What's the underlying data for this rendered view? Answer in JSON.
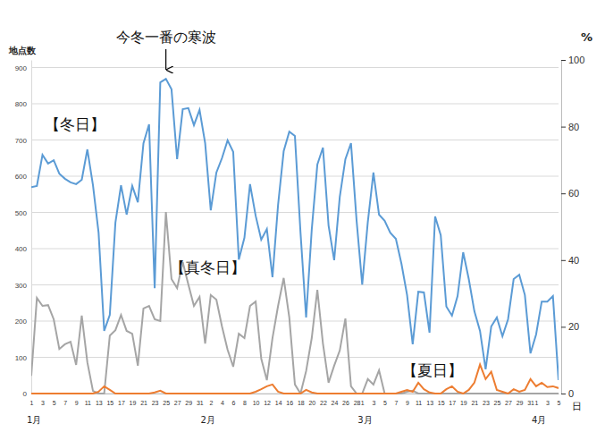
{
  "chart_data": {
    "type": "line",
    "y_label": "地点数",
    "y2_label": "%",
    "x_label": "日",
    "grid": true,
    "ylim": [
      0,
      921
    ],
    "yticks": [
      0,
      100,
      200,
      300,
      400,
      500,
      600,
      700,
      800,
      900
    ],
    "y2lim": [
      0,
      100
    ],
    "y2ticks": [
      0,
      20,
      40,
      60,
      80,
      100
    ],
    "categories": [
      "1",
      null,
      "3",
      null,
      "5",
      null,
      "7",
      null,
      "9",
      null,
      "11",
      null,
      "13",
      null,
      "15",
      null,
      "17",
      null,
      "19",
      null,
      "21",
      null,
      "23",
      null,
      "25",
      null,
      "27",
      null,
      "29",
      null,
      "31",
      null,
      "2",
      null,
      "4",
      null,
      "6",
      null,
      "8",
      null,
      "10",
      null,
      "12",
      null,
      "14",
      null,
      "16",
      null,
      "18",
      null,
      "20",
      null,
      "22",
      null,
      "24",
      null,
      "26",
      null,
      "28",
      "1",
      null,
      "3",
      null,
      "5",
      null,
      "7",
      null,
      "9",
      null,
      "11",
      null,
      "13",
      null,
      "15",
      null,
      "17",
      null,
      "19",
      null,
      "21",
      null,
      "23",
      null,
      "25",
      null,
      "27",
      null,
      "29",
      null,
      "31",
      "1",
      null,
      "3",
      null,
      "5"
    ],
    "x_group_labels": [
      {
        "label": "1月",
        "index": 0
      },
      {
        "label": "2月",
        "index": 31
      },
      {
        "label": "3月",
        "index": 59
      },
      {
        "label": "4月",
        "index": 90
      }
    ],
    "annotations": [
      {
        "text": "今冬一番の寒波",
        "index": 24
      }
    ],
    "series": [
      {
        "name": "【冬日】",
        "color": "#5b9bd5",
        "values": [
          570,
          573,
          659,
          635,
          644,
          607,
          593,
          583,
          578,
          590,
          674,
          575,
          444,
          173,
          217,
          472,
          575,
          494,
          573,
          528,
          691,
          743,
          291,
          859,
          869,
          840,
          647,
          785,
          788,
          741,
          783,
          691,
          506,
          610,
          650,
          699,
          667,
          370,
          430,
          578,
          491,
          425,
          454,
          321,
          521,
          669,
          723,
          711,
          444,
          210,
          452,
          632,
          679,
          464,
          368,
          543,
          647,
          691,
          477,
          301,
          474,
          610,
          494,
          477,
          444,
          427,
          358,
          272,
          136,
          281,
          279,
          168,
          489,
          437,
          240,
          215,
          269,
          390,
          316,
          227,
          173,
          67,
          185,
          210,
          158,
          205,
          316,
          328,
          272,
          111,
          163,
          254,
          254,
          269,
          37
        ]
      },
      {
        "name": "【真冬日】",
        "color": "#a5a5a5",
        "values": [
          49,
          264,
          242,
          244,
          205,
          123,
          136,
          143,
          79,
          215,
          86,
          7,
          0,
          0,
          160,
          175,
          217,
          173,
          165,
          77,
          235,
          242,
          205,
          200,
          501,
          316,
          291,
          363,
          301,
          242,
          267,
          138,
          272,
          259,
          185,
          121,
          74,
          165,
          153,
          242,
          254,
          96,
          37,
          153,
          242,
          319,
          210,
          25,
          0,
          62,
          153,
          286,
          138,
          30,
          77,
          119,
          207,
          20,
          0,
          0,
          40,
          25,
          64,
          0,
          0,
          0,
          0,
          5,
          8,
          0,
          0,
          0,
          0,
          0,
          0,
          0,
          0,
          0,
          0,
          0,
          0,
          0,
          0,
          0,
          0,
          0,
          0,
          0,
          0,
          0,
          0,
          0,
          0,
          0,
          0
        ]
      },
      {
        "name": "【夏日】",
        "color": "#ed7d31",
        "values": [
          0,
          0,
          0,
          0,
          0,
          0,
          0,
          0,
          0,
          0,
          0,
          0,
          5,
          20,
          10,
          0,
          0,
          0,
          0,
          0,
          0,
          0,
          3,
          8,
          0,
          0,
          0,
          0,
          0,
          0,
          0,
          0,
          0,
          0,
          0,
          0,
          0,
          0,
          0,
          0,
          5,
          12,
          20,
          25,
          5,
          0,
          0,
          0,
          0,
          10,
          3,
          0,
          0,
          0,
          0,
          0,
          0,
          0,
          0,
          0,
          0,
          0,
          0,
          0,
          0,
          0,
          5,
          10,
          5,
          30,
          12,
          3,
          0,
          0,
          12,
          20,
          5,
          0,
          10,
          30,
          80,
          40,
          60,
          10,
          5,
          0,
          12,
          5,
          10,
          40,
          20,
          30,
          18,
          20,
          15
        ]
      }
    ]
  }
}
